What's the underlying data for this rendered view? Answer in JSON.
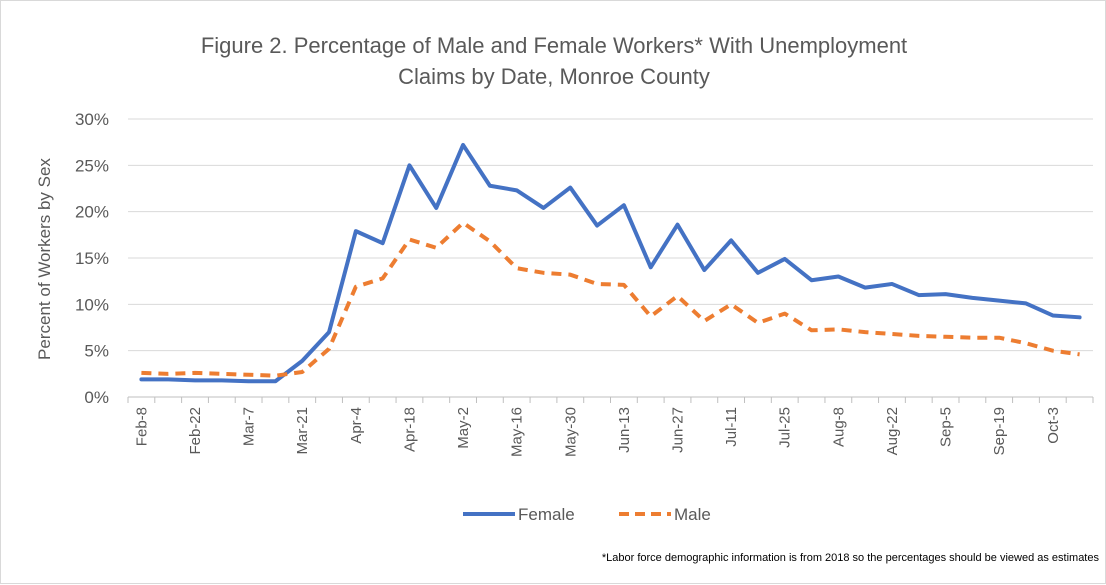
{
  "chart_data": {
    "type": "line",
    "title_lines": [
      "Figure 2. Percentage of Male and Female Workers* With Unemployment",
      "Claims by Date, Monroe County"
    ],
    "ylabel": "Percent of Workers by Sex",
    "xlabel": "",
    "ylim": [
      0,
      0.3
    ],
    "yticks": [
      0,
      0.05,
      0.1,
      0.15,
      0.2,
      0.25,
      0.3
    ],
    "ytick_labels": [
      "0%",
      "5%",
      "10%",
      "15%",
      "20%",
      "25%",
      "30%"
    ],
    "grid": true,
    "legend_position": "bottom",
    "x": [
      "Feb-8",
      "Feb-15",
      "Feb-22",
      "Feb-29",
      "Mar-7",
      "Mar-14",
      "Mar-21",
      "Mar-28",
      "Apr-4",
      "Apr-11",
      "Apr-18",
      "Apr-25",
      "May-2",
      "May-9",
      "May-16",
      "May-23",
      "May-30",
      "Jun-6",
      "Jun-13",
      "Jun-20",
      "Jun-27",
      "Jul-4",
      "Jul-11",
      "Jul-18",
      "Jul-25",
      "Aug-1",
      "Aug-8",
      "Aug-15",
      "Aug-22",
      "Aug-29",
      "Sep-5",
      "Sep-12",
      "Sep-19",
      "Sep-26",
      "Oct-3",
      "Oct-10"
    ],
    "x_tick_labels": [
      "Feb-8",
      "Feb-22",
      "Mar-7",
      "Mar-21",
      "Apr-4",
      "Apr-18",
      "May-2",
      "May-16",
      "May-30",
      "Jun-13",
      "Jun-27",
      "Jul-11",
      "Jul-25",
      "Aug-8",
      "Aug-22",
      "Sep-5",
      "Sep-19",
      "Oct-3"
    ],
    "series": [
      {
        "name": "Female",
        "color": "#4472c4",
        "style": "solid",
        "values": [
          0.019,
          0.019,
          0.018,
          0.018,
          0.017,
          0.017,
          0.039,
          0.07,
          0.179,
          0.166,
          0.25,
          0.204,
          0.272,
          0.228,
          0.223,
          0.204,
          0.226,
          0.185,
          0.207,
          0.14,
          0.186,
          0.137,
          0.169,
          0.134,
          0.149,
          0.126,
          0.13,
          0.118,
          0.122,
          0.11,
          0.111,
          0.107,
          0.104,
          0.101,
          0.088,
          0.086
        ]
      },
      {
        "name": "Male",
        "color": "#ed7d31",
        "style": "dashed",
        "values": [
          0.026,
          0.025,
          0.026,
          0.025,
          0.024,
          0.023,
          0.027,
          0.052,
          0.119,
          0.128,
          0.17,
          0.161,
          0.188,
          0.168,
          0.139,
          0.134,
          0.132,
          0.122,
          0.121,
          0.087,
          0.109,
          0.082,
          0.1,
          0.08,
          0.09,
          0.072,
          0.073,
          0.07,
          0.068,
          0.066,
          0.065,
          0.064,
          0.064,
          0.058,
          0.05,
          0.046
        ]
      }
    ],
    "footnote": "*Labor force demographic information is from 2018 so the percentages should be viewed as estimates"
  }
}
